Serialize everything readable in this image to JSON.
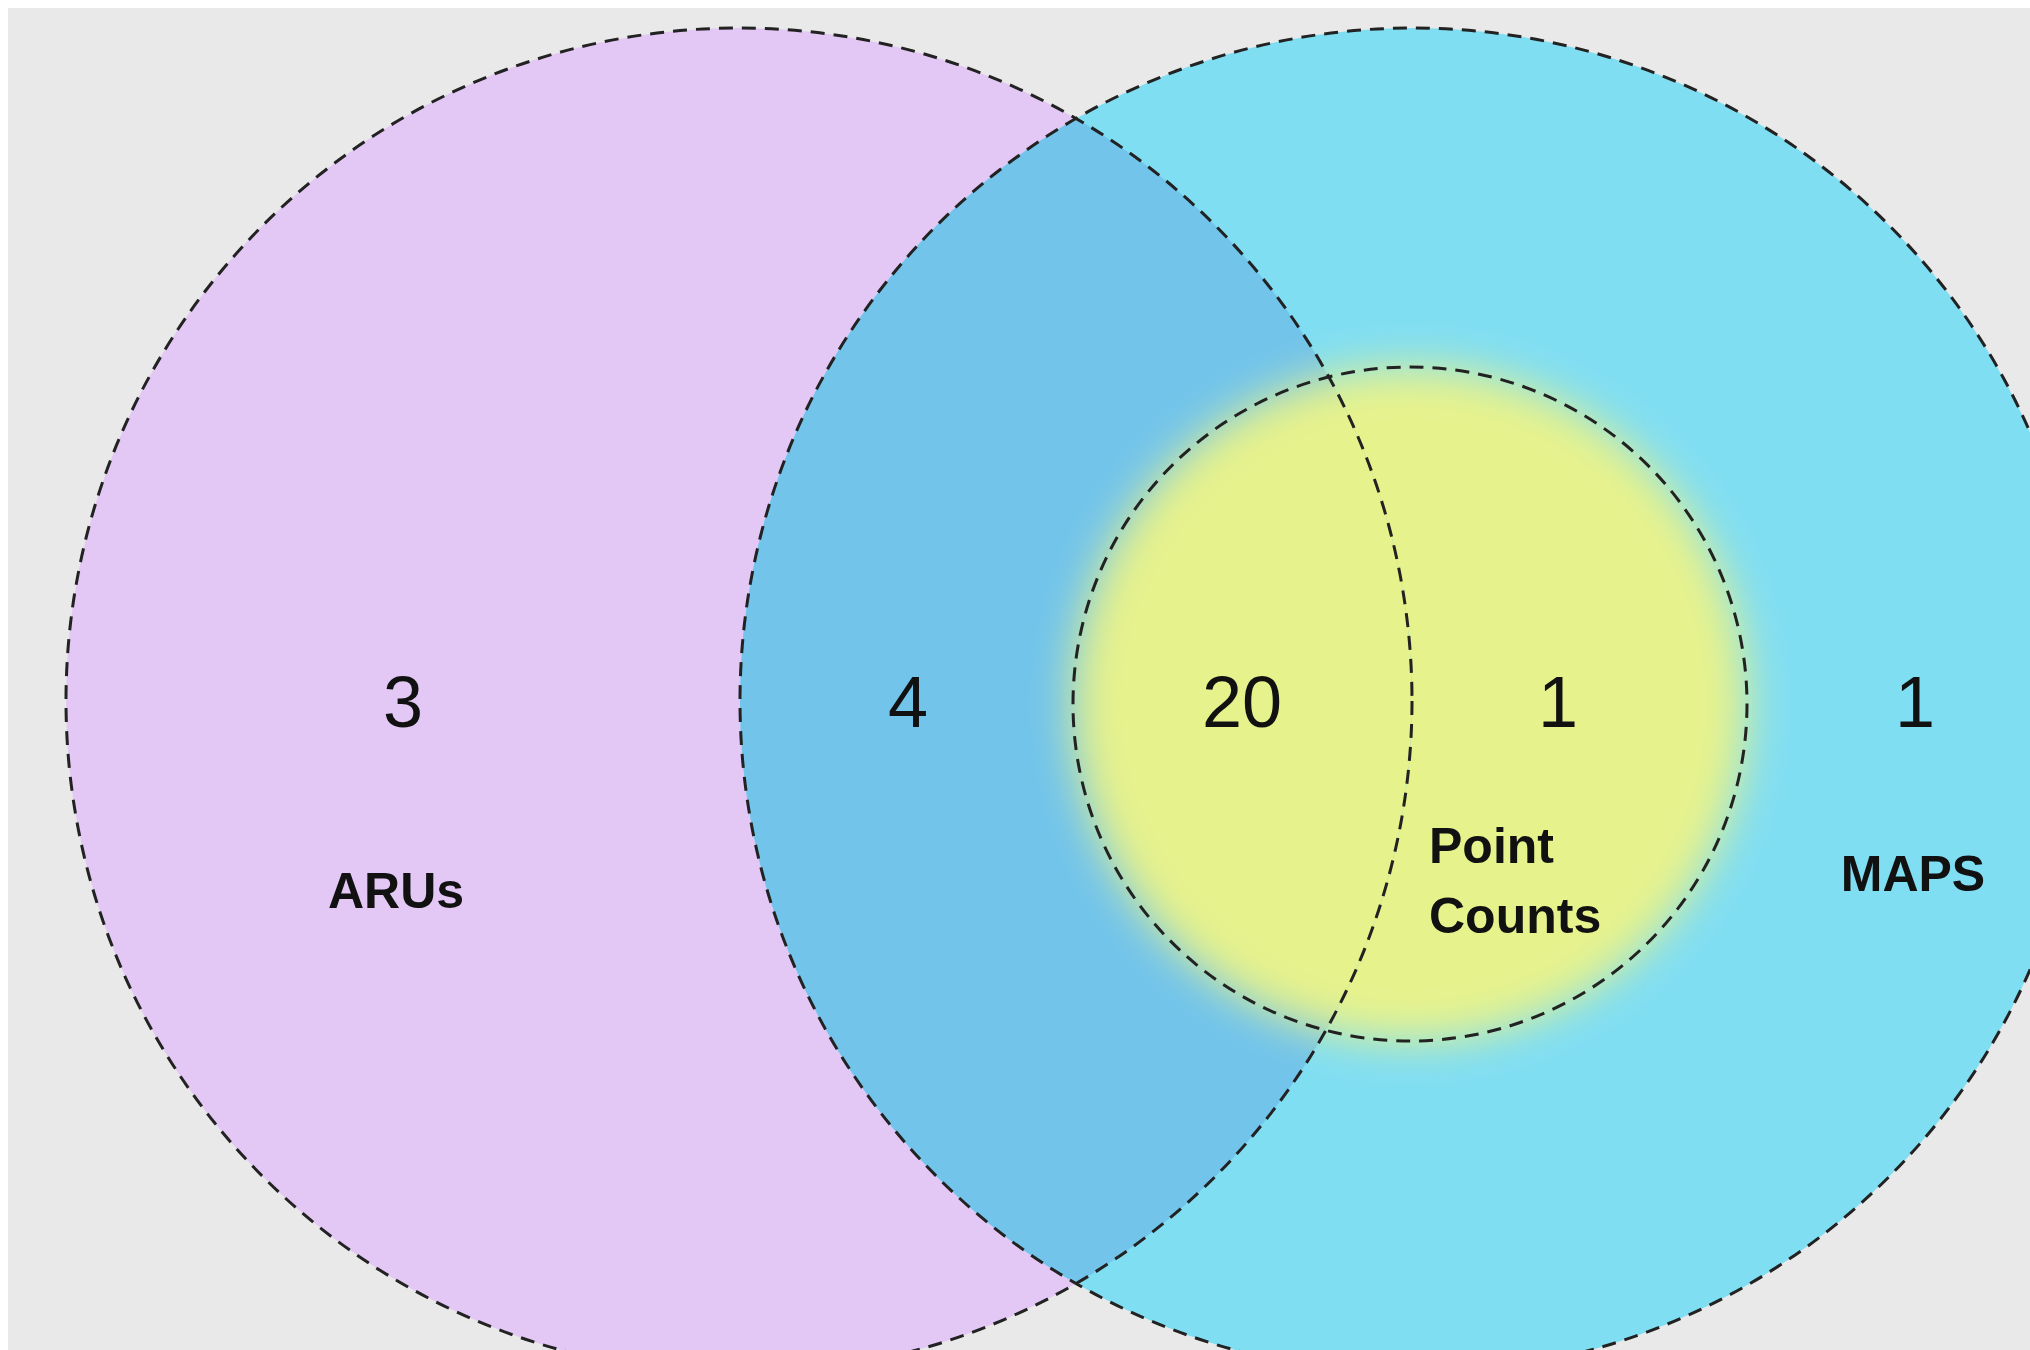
{
  "chart_data": {
    "type": "other",
    "categories": [
      null,
      null,
      null,
      null,
      null
    ],
    "values": [
      3,
      4,
      20,
      1,
      1
    ],
    "data_labels": true,
    "colors": [
      "#e3c8f5",
      "#72c4eb",
      "#e6f28c",
      "#e6f28c",
      "#80def3"
    ],
    "annotations": [
      "ARUs",
      "MAPS",
      "Point Counts"
    ]
  }
}
